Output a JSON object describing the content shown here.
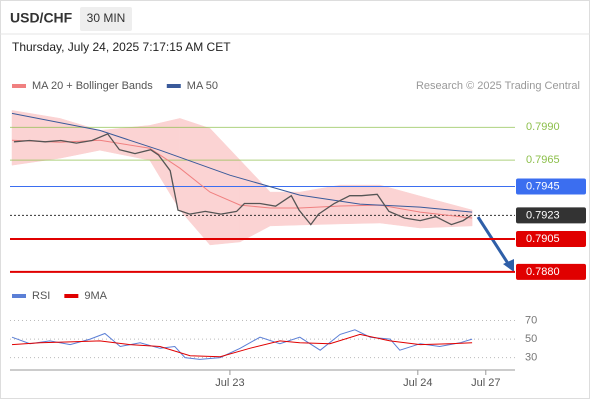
{
  "header": {
    "symbol": "USD/CHF",
    "timeframe": "30 MIN",
    "datetime": "Thursday, July 24, 2025 7:17:15 AM CET",
    "credit": "Research © 2025 Trading Central"
  },
  "chart_data": [
    {
      "type": "line",
      "xlim": [
        0,
        128
      ],
      "xticks": [
        {
          "value": 56.3,
          "label": "Jul 23"
        },
        {
          "value": 104.4,
          "label": "Jul 24"
        },
        {
          "value": 121.8,
          "label": "Jul 27"
        }
      ],
      "ylim": [
        0.787,
        0.8007
      ],
      "price": {
        "color": "#555555",
        "x": [
          1,
          5,
          9,
          13,
          17,
          21,
          25,
          28,
          32,
          36,
          38,
          41,
          43,
          46,
          50,
          54,
          58,
          60,
          64,
          68,
          72,
          74,
          77,
          79,
          83,
          87,
          90,
          94,
          97,
          101,
          105,
          109,
          113,
          116,
          118
        ],
        "values": [
          0.7979,
          0.798,
          0.7979,
          0.798,
          0.7978,
          0.798,
          0.7985,
          0.7973,
          0.797,
          0.7973,
          0.7969,
          0.7957,
          0.7927,
          0.7924,
          0.7926,
          0.7924,
          0.7926,
          0.7932,
          0.7932,
          0.793,
          0.7938,
          0.7927,
          0.7916,
          0.7924,
          0.7932,
          0.7938,
          0.7938,
          0.7939,
          0.7926,
          0.7921,
          0.7919,
          0.7922,
          0.7916,
          0.7919,
          0.7923
        ]
      },
      "series": [
        {
          "name": "MA 20 + Bollinger Bands",
          "color": "#f08080",
          "band_color": "#fbd3d3",
          "x": [
            0.5,
            12.8,
            23,
            35.8,
            43.5,
            51.2,
            58.9,
            66.6,
            74.2,
            84.5,
            94.7,
            105,
            118.3
          ],
          "values": [
            0.79801,
            0.79786,
            0.79801,
            0.79741,
            0.79589,
            0.79407,
            0.79308,
            0.79286,
            0.79286,
            0.79301,
            0.79308,
            0.79255,
            0.7921
          ],
          "upper": [
            0.80029,
            0.79968,
            0.79877,
            0.79915,
            0.79968,
            0.79892,
            0.7965,
            0.79407,
            0.79407,
            0.7946,
            0.7946,
            0.79377,
            0.79271
          ],
          "lower": [
            0.79612,
            0.79665,
            0.79726,
            0.7965,
            0.7927,
            0.79005,
            0.79028,
            0.7915,
            0.79157,
            0.79165,
            0.79172,
            0.79134,
            0.7915
          ]
        },
        {
          "name": "MA 50",
          "color": "#3a5a9a",
          "x": [
            0.5,
            23,
            38.4,
            56.3,
            74.2,
            89.6,
            105,
            118.3
          ],
          "values": [
            0.80006,
            0.79877,
            0.79726,
            0.79536,
            0.79384,
            0.79316,
            0.79293,
            0.79255
          ]
        }
      ],
      "levels": [
        {
          "value": 0.799,
          "label": "0.7990",
          "color": "#8cbf4a",
          "style": "plain"
        },
        {
          "value": 0.7965,
          "label": "0.7965",
          "color": "#8cbf4a",
          "style": "plain"
        },
        {
          "value": 0.7945,
          "label": "0.7945",
          "color": "#3b6ef0",
          "style": "badge"
        },
        {
          "value": 0.7923,
          "label": "0.7923",
          "color": "#333333",
          "style": "dotted"
        },
        {
          "value": 0.7905,
          "label": "0.7905",
          "color": "#e00000",
          "style": "badge"
        },
        {
          "value": 0.788,
          "label": "0.7880",
          "color": "#e00000",
          "style": "badge"
        }
      ]
    },
    {
      "type": "line",
      "xlim": [
        0,
        128
      ],
      "ylim": [
        22,
        76
      ],
      "yticks": [
        70,
        50,
        30
      ],
      "series": [
        {
          "name": "RSI",
          "color": "#5b7fd6",
          "x": [
            0.5,
            5.1,
            10.2,
            15.4,
            20.5,
            24.3,
            28.2,
            33.3,
            38.4,
            42.2,
            44.8,
            48.6,
            53.8,
            58.9,
            64,
            69.1,
            74.2,
            79.4,
            84.5,
            88.3,
            92.2,
            97.3,
            99.8,
            105,
            110,
            115.2,
            118.3
          ],
          "values": [
            52,
            45,
            48,
            44,
            50,
            56,
            42,
            46,
            40,
            42,
            30,
            28,
            30,
            40,
            52,
            45,
            52,
            38,
            55,
            60,
            52,
            50,
            38,
            45,
            42,
            46,
            50
          ]
        },
        {
          "name": "9MA",
          "color": "#e00000",
          "x": [
            0.5,
            7.7,
            15.4,
            23,
            30.7,
            38.4,
            46.1,
            53.8,
            61.4,
            69.1,
            74.2,
            81.9,
            89.6,
            97.3,
            105,
            112.6,
            118.3
          ],
          "values": [
            44,
            46,
            47,
            48,
            44,
            42,
            32,
            31,
            40,
            48,
            46,
            45,
            55,
            48,
            44,
            45,
            46
          ]
        }
      ]
    }
  ]
}
